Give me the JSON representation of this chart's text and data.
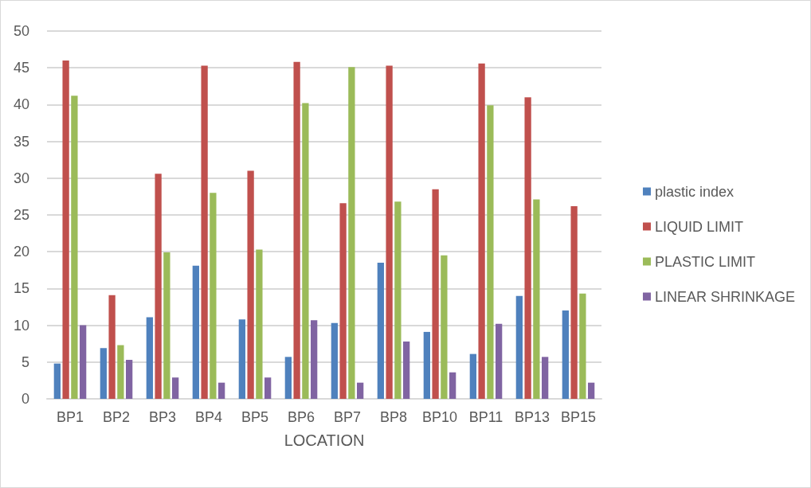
{
  "chart_data": {
    "type": "bar",
    "xlabel": "LOCATION",
    "categories": [
      "BP1",
      "BP2",
      "BP3",
      "BP4",
      "BP5",
      "BP6",
      "BP7",
      "BP8",
      "BP10",
      "BP11",
      "BP13",
      "BP15"
    ],
    "series": [
      {
        "name": "plastic index",
        "color": "#4f81bd",
        "values": [
          4.8,
          6.9,
          11.1,
          18.1,
          10.8,
          5.7,
          10.3,
          18.5,
          9.1,
          6.1,
          14.0,
          12.0
        ]
      },
      {
        "name": "LIQUID LIMIT",
        "color": "#c0504d",
        "values": [
          46.0,
          14.1,
          30.6,
          45.3,
          31.0,
          45.8,
          26.6,
          45.3,
          28.5,
          45.6,
          41.0,
          26.2
        ]
      },
      {
        "name": "PLASTIC LIMIT",
        "color": "#9bbb59",
        "values": [
          41.2,
          7.3,
          19.9,
          28.0,
          20.3,
          40.2,
          45.1,
          26.8,
          19.5,
          39.9,
          27.1,
          14.3
        ]
      },
      {
        "name": "LINEAR SHRINKAGE",
        "color": "#8064a2",
        "values": [
          10.0,
          5.3,
          2.9,
          2.2,
          2.9,
          10.7,
          2.2,
          7.8,
          3.6,
          10.2,
          5.7,
          2.2
        ]
      }
    ],
    "ylim": [
      0,
      50
    ],
    "yticks": [
      0,
      5,
      10,
      15,
      20,
      25,
      30,
      35,
      40,
      45,
      50
    ],
    "grid": "y",
    "legend": "right"
  }
}
